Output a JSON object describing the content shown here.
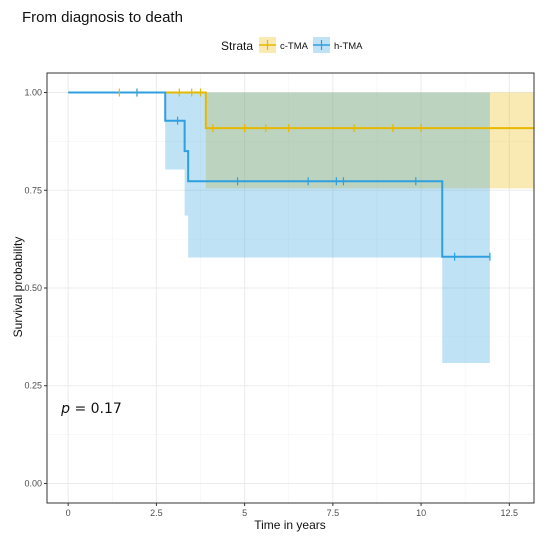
{
  "chart_data": {
    "type": "line",
    "title": "From diagnosis to death",
    "xlabel": "Time in years",
    "ylabel": "Survival probability",
    "xlim": [
      -0.6,
      13.2
    ],
    "ylim": [
      -0.05,
      1.05
    ],
    "x_ticks": [
      0,
      2.5,
      5,
      7.5,
      10,
      12.5
    ],
    "x_tick_labels": [
      "0",
      "2.5",
      "5",
      "7.5",
      "10",
      "12.5"
    ],
    "y_ticks": [
      0,
      0.25,
      0.5,
      0.75,
      1.0
    ],
    "y_tick_labels": [
      "0.00",
      "0.25",
      "0.50",
      "0.75",
      "1.00"
    ],
    "grid": true,
    "legend": {
      "title": "Strata",
      "position": "top"
    },
    "annotation": {
      "italic": "p",
      "rest": " = 0.17"
    },
    "series": [
      {
        "name": "c-TMA",
        "color": "#E7B800",
        "steps": [
          [
            0,
            1.0
          ],
          [
            3.9,
            1.0
          ],
          [
            3.9,
            0.909
          ],
          [
            13.2,
            0.909
          ]
        ],
        "ci": [
          [
            0,
            1.0,
            1.0
          ],
          [
            3.9,
            0.755,
            1.0
          ],
          [
            13.2,
            0.755,
            1.0
          ]
        ],
        "censor_times": [
          1.45,
          1.95,
          3.15,
          3.5,
          3.75,
          4.1,
          5.0,
          5.6,
          6.25,
          8.1,
          9.2,
          10.0
        ],
        "censor_probs": [
          1.0,
          1.0,
          1.0,
          1.0,
          1.0,
          0.909,
          0.909,
          0.909,
          0.909,
          0.909,
          0.909,
          0.909
        ]
      },
      {
        "name": "h-TMA",
        "color": "#2E9FDF",
        "steps": [
          [
            0,
            1.0
          ],
          [
            2.75,
            1.0
          ],
          [
            2.75,
            0.928
          ],
          [
            3.3,
            0.928
          ],
          [
            3.3,
            0.85
          ],
          [
            3.4,
            0.85
          ],
          [
            3.4,
            0.773
          ],
          [
            10.6,
            0.773
          ],
          [
            10.6,
            0.58
          ],
          [
            11.95,
            0.58
          ]
        ],
        "ci": [
          [
            0,
            1.0,
            1.0
          ],
          [
            2.75,
            0.803,
            1.0
          ],
          [
            3.3,
            0.685,
            1.0
          ],
          [
            3.4,
            0.578,
            1.0
          ],
          [
            10.6,
            0.308,
            1.0
          ],
          [
            11.95,
            0.308,
            1.0
          ]
        ],
        "censor_times": [
          1.95,
          3.1,
          4.8,
          6.8,
          7.6,
          7.8,
          9.85,
          10.95,
          11.95
        ],
        "censor_probs": [
          1.0,
          0.928,
          0.773,
          0.773,
          0.773,
          0.773,
          0.773,
          0.58,
          0.58
        ]
      }
    ]
  }
}
